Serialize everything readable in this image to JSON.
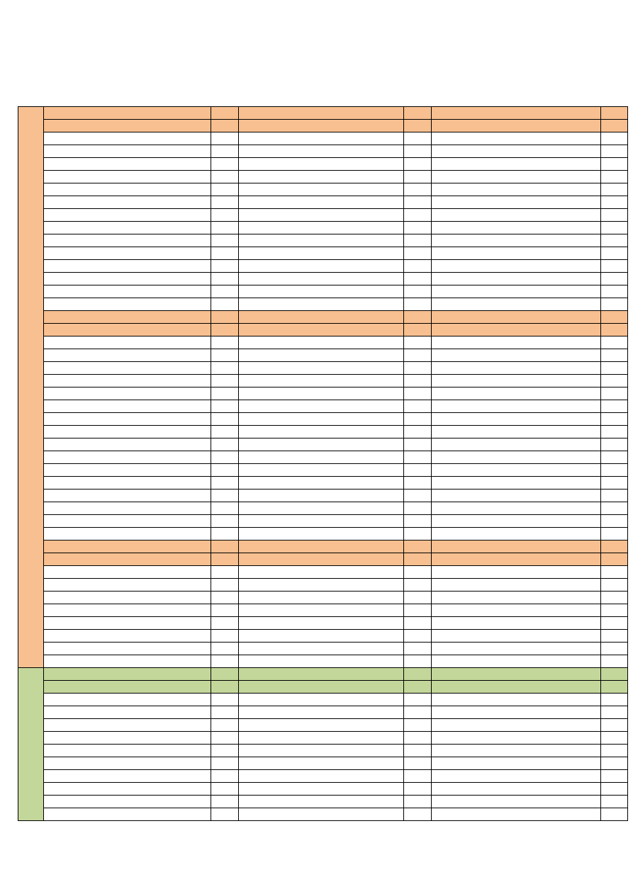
{
  "colors": {
    "orange": "#F8C090",
    "green": "#C4D79B",
    "white": "#FFFFFF"
  },
  "columns": 6,
  "sections": [
    {
      "color": "orange",
      "groups": [
        {
          "header_rows": 2,
          "body_rows": 14
        },
        {
          "header_rows": 2,
          "body_rows": 16
        },
        {
          "header_rows": 2,
          "body_rows": 8
        }
      ]
    },
    {
      "color": "green",
      "groups": [
        {
          "header_rows": 2,
          "body_rows": 10
        }
      ]
    }
  ]
}
